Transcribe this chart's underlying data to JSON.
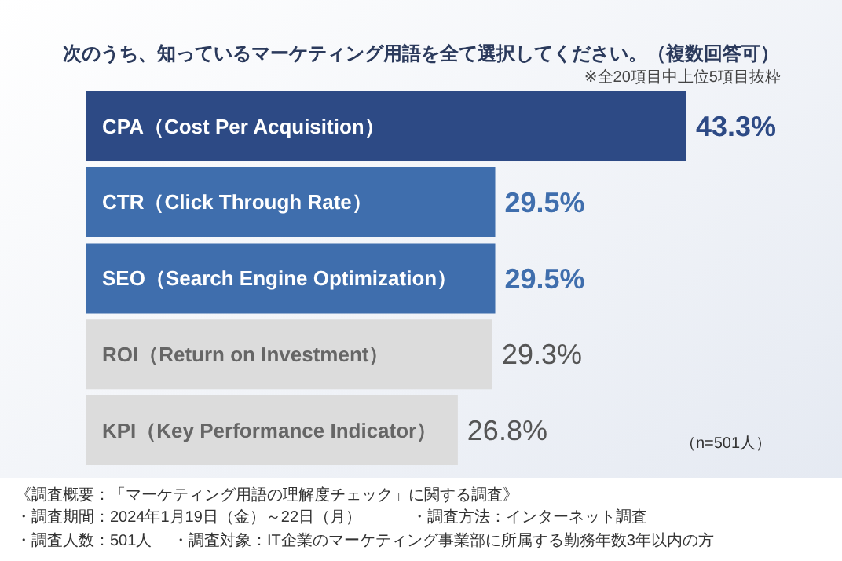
{
  "chart_data": {
    "type": "bar",
    "orientation": "horizontal",
    "title": "次のうち、知っているマーケティング用語を全て選択してください。（複数回答可）",
    "categories": [
      "CPA（Cost Per Acquisition）",
      "CTR（Click Through Rate）",
      "SEO（Search Engine Optimization）",
      "ROI（Return on Investment）",
      "KPI（Key Performance Indicator）"
    ],
    "values": [
      43.3,
      29.5,
      29.5,
      29.3,
      26.8
    ],
    "value_labels": [
      "43.3%",
      "29.5%",
      "29.5%",
      "29.3%",
      "26.8%"
    ],
    "colors": [
      "#2d4a85",
      "#3f6ead",
      "#3f6ead",
      "#dcdcdc",
      "#dcdcdc"
    ],
    "annotations": [
      "※全20項目中上位5項目抜粋",
      "（n=501人）",
      "《調査概要：「マーケティング用語の理解度チェック」に関する調査》",
      "・調査期間：2024年1月19日（金）～22日（月）",
      "・調査方法：インターネット調査",
      "・調査人数：501人",
      "・調査対象：IT企業のマーケティング事業部に所属する勤務年数3年以内の方"
    ]
  }
}
